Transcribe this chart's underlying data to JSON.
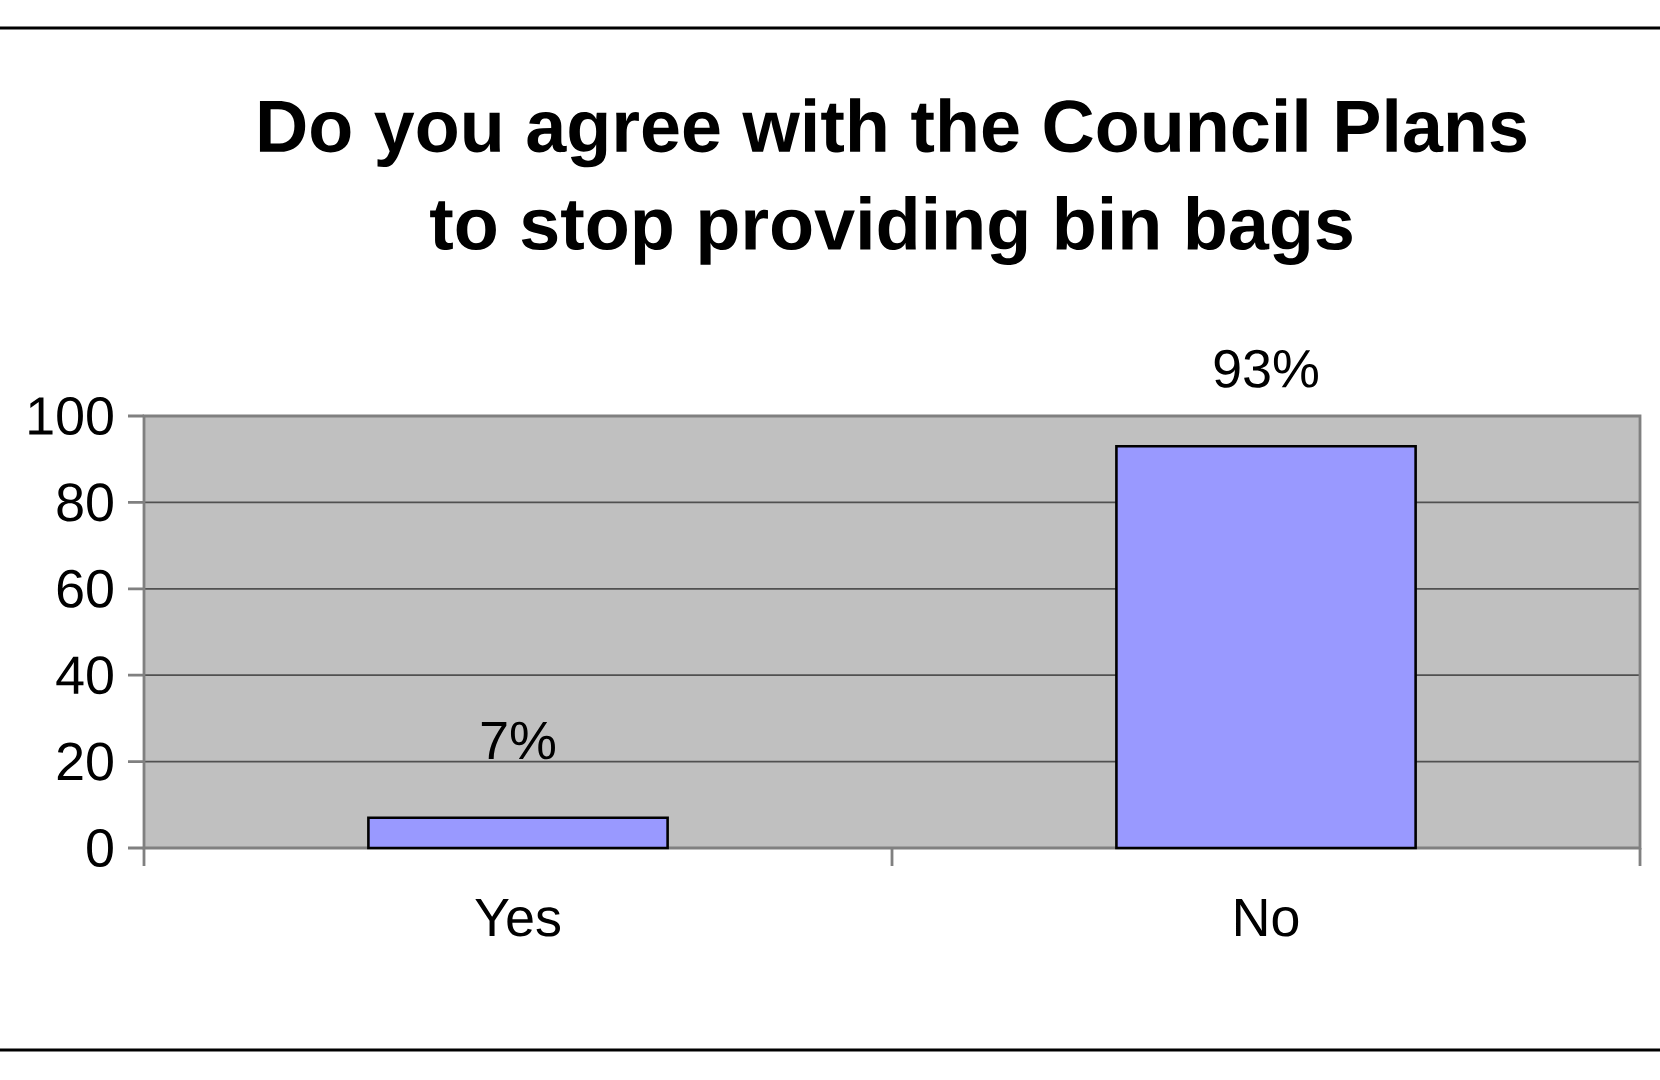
{
  "chart_data": {
    "type": "bar",
    "title": "Do you agree with the Council Plans to stop providing bin bags",
    "categories": [
      "Yes",
      "No"
    ],
    "values": [
      7,
      93
    ],
    "value_labels": [
      "7%",
      "93%"
    ],
    "color": "#9999ff",
    "ylim": [
      0,
      100
    ],
    "yticks": [
      0,
      20,
      40,
      60,
      80,
      100
    ],
    "grid": "y"
  }
}
